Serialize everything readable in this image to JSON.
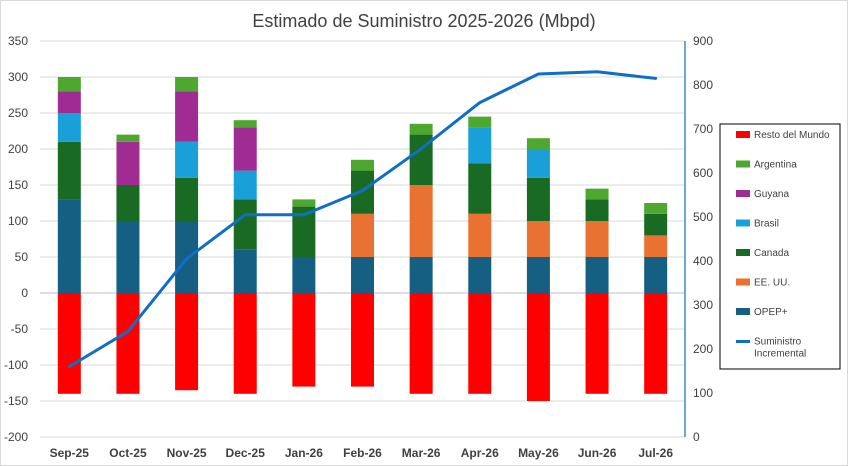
{
  "chart_data": {
    "type": "bar",
    "title": "Estimado de Suministro 2025-2026 (Mbpd)",
    "categories": [
      "Sep-25",
      "Oct-25",
      "Nov-25",
      "Dec-25",
      "Jan-26",
      "Feb-26",
      "Mar-26",
      "Apr-26",
      "May-26",
      "Jun-26",
      "Jul-26"
    ],
    "y_left": {
      "ticks": [
        350,
        300,
        250,
        200,
        150,
        100,
        50,
        0,
        -50,
        -100,
        -150,
        -200
      ],
      "min": -200,
      "max": 350
    },
    "y_right": {
      "ticks": [
        900,
        800,
        700,
        600,
        500,
        400,
        300,
        200,
        100,
        0
      ],
      "min": 0,
      "max": 900
    },
    "stack_order": [
      "OPEP+",
      "EE. UU.",
      "Canada",
      "Brasil",
      "Guyana",
      "Argentina"
    ],
    "series": [
      {
        "name": "Resto del Mundo",
        "color": "#ff0000",
        "axis": "left",
        "kind": "bar",
        "values": [
          -140,
          -140,
          -135,
          -140,
          -130,
          -130,
          -140,
          -140,
          -150,
          -140,
          -140
        ]
      },
      {
        "name": "Argentina",
        "color": "#4ea72e",
        "axis": "left",
        "kind": "bar",
        "values": [
          20,
          10,
          20,
          10,
          10,
          15,
          15,
          15,
          15,
          15,
          15
        ]
      },
      {
        "name": "Guyana",
        "color": "#a02b93",
        "axis": "left",
        "kind": "bar",
        "values": [
          30,
          60,
          70,
          60,
          0,
          0,
          0,
          0,
          0,
          0,
          0
        ]
      },
      {
        "name": "Brasil",
        "color": "#1aa0d8",
        "axis": "left",
        "kind": "bar",
        "values": [
          40,
          0,
          50,
          40,
          0,
          0,
          0,
          50,
          40,
          0,
          0
        ]
      },
      {
        "name": "Canada",
        "color": "#196b24",
        "axis": "left",
        "kind": "bar",
        "values": [
          80,
          50,
          60,
          70,
          70,
          60,
          70,
          70,
          60,
          30,
          30
        ]
      },
      {
        "name": "EE. UU.",
        "color": "#e97132",
        "axis": "left",
        "kind": "bar",
        "values": [
          0,
          0,
          0,
          0,
          0,
          60,
          100,
          60,
          50,
          50,
          30
        ]
      },
      {
        "name": "OPEP+",
        "color": "#156082",
        "axis": "left",
        "kind": "bar",
        "values": [
          130,
          100,
          100,
          60,
          50,
          50,
          50,
          50,
          50,
          50,
          50
        ]
      },
      {
        "name": "Suministro Incremental",
        "color": "#0f6fc6",
        "axis": "right",
        "kind": "line",
        "values": [
          160,
          240,
          405,
          505,
          505,
          560,
          655,
          760,
          825,
          830,
          815
        ]
      }
    ],
    "legend": {
      "placement": "right",
      "entries": [
        "Resto del Mundo",
        "Argentina",
        "Guyana",
        "Brasil",
        "Canada",
        "EE. UU.",
        "OPEP+",
        "Suministro Incremental"
      ]
    },
    "grid": true
  }
}
